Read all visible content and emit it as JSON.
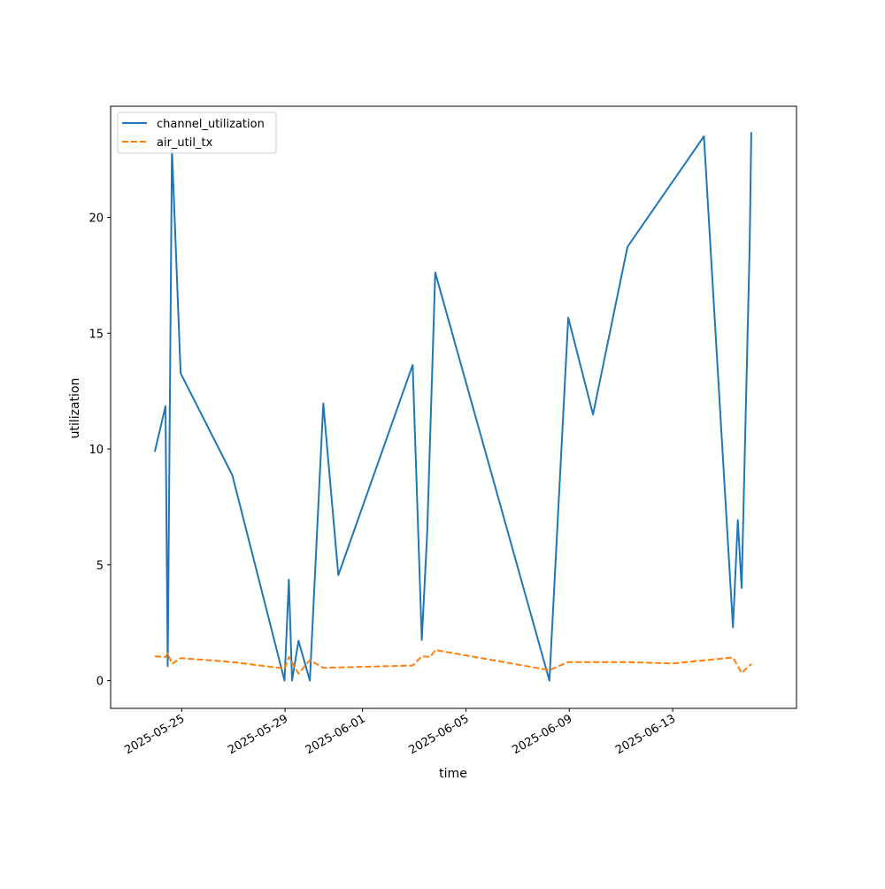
{
  "chart_data": {
    "type": "line",
    "title": "",
    "xlabel": "time",
    "ylabel": "utilization",
    "x_ticks": [
      "2025-05-25",
      "2025-05-29",
      "2025-06-01",
      "2025-06-05",
      "2025-06-09",
      "2025-06-13"
    ],
    "y_ticks": [
      0,
      5,
      10,
      15,
      20
    ],
    "xlim": [
      "2025-05-22T06:00",
      "2025-06-17T19:00"
    ],
    "ylim": [
      -1.2,
      24.8
    ],
    "grid": false,
    "legend_position": "upper-left",
    "series": [
      {
        "name": "channel_utilization",
        "color": "#1f77b4",
        "style": "solid",
        "points": [
          [
            "2025-05-23T23:00",
            9.88
          ],
          [
            "2025-05-24T09:00",
            11.85
          ],
          [
            "2025-05-24T11:00",
            0.62
          ],
          [
            "2025-05-24T15:00",
            22.98
          ],
          [
            "2025-05-24T23:00",
            13.27
          ],
          [
            "2025-05-26T23:00",
            8.87
          ],
          [
            "2025-05-28T23:30",
            0.0
          ],
          [
            "2025-05-29T03:30",
            4.36
          ],
          [
            "2025-05-29T06:30",
            0.0
          ],
          [
            "2025-05-29T12:30",
            1.72
          ],
          [
            "2025-05-29T23:00",
            0.0
          ],
          [
            "2025-05-30T11:30",
            11.97
          ],
          [
            "2025-05-31T01:30",
            4.55
          ],
          [
            "2025-06-02T22:30",
            13.63
          ],
          [
            "2025-06-03T07:00",
            1.75
          ],
          [
            "2025-06-03T12:00",
            6.38
          ],
          [
            "2025-06-03T19:30",
            17.62
          ],
          [
            "2025-06-08T05:30",
            0.0
          ],
          [
            "2025-06-08T23:00",
            15.67
          ],
          [
            "2025-06-09T22:00",
            11.49
          ],
          [
            "2025-06-11T06:00",
            18.73
          ],
          [
            "2025-06-14T05:00",
            23.5
          ],
          [
            "2025-06-15T08:00",
            2.3
          ],
          [
            "2025-06-15T12:30",
            6.93
          ],
          [
            "2025-06-15T16:00",
            4.0
          ],
          [
            "2025-06-15T23:30",
            18.8
          ],
          [
            "2025-06-16T01:00",
            23.68
          ]
        ]
      },
      {
        "name": "air_util_tx",
        "color": "#ff7f0e",
        "style": "dashed",
        "points": [
          [
            "2025-05-23T23:00",
            1.05
          ],
          [
            "2025-05-24T09:00",
            1.02
          ],
          [
            "2025-05-24T11:00",
            1.18
          ],
          [
            "2025-05-24T15:00",
            0.72
          ],
          [
            "2025-05-24T23:00",
            0.97
          ],
          [
            "2025-05-26T23:00",
            0.8
          ],
          [
            "2025-05-28T23:30",
            0.52
          ],
          [
            "2025-05-29T03:30",
            1.02
          ],
          [
            "2025-05-29T12:30",
            0.3
          ],
          [
            "2025-05-29T23:00",
            0.88
          ],
          [
            "2025-05-30T11:30",
            0.55
          ],
          [
            "2025-06-02T22:30",
            0.65
          ],
          [
            "2025-06-03T07:00",
            1.05
          ],
          [
            "2025-06-03T15:00",
            1.02
          ],
          [
            "2025-06-03T19:30",
            1.32
          ],
          [
            "2025-06-08T05:30",
            0.45
          ],
          [
            "2025-06-08T23:00",
            0.8
          ],
          [
            "2025-06-11T06:00",
            0.8
          ],
          [
            "2025-06-13T00:00",
            0.74
          ],
          [
            "2025-06-15T08:00",
            1.0
          ],
          [
            "2025-06-15T16:00",
            0.33
          ],
          [
            "2025-06-16T01:00",
            0.72
          ]
        ]
      }
    ]
  }
}
